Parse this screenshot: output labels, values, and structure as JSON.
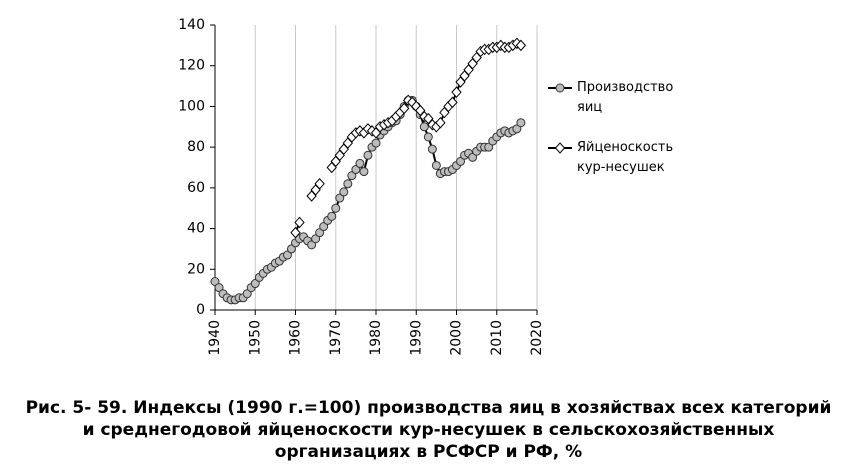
{
  "chart_data": {
    "type": "line",
    "title": [
      "Рис. 5- 59. Индексы (1990 г.=100) производства яиц в хозяйствах всех категорий",
      "и среднегодовой яйценоскости кур-несушек в сельскохозяйственных",
      "организациях в РСФСР и РФ, %"
    ],
    "x": [
      1940,
      1941,
      1942,
      1943,
      1944,
      1945,
      1946,
      1947,
      1948,
      1949,
      1950,
      1951,
      1952,
      1953,
      1954,
      1955,
      1956,
      1957,
      1958,
      1959,
      1960,
      1961,
      1962,
      1963,
      1964,
      1965,
      1966,
      1967,
      1968,
      1969,
      1970,
      1971,
      1972,
      1973,
      1974,
      1975,
      1976,
      1977,
      1978,
      1979,
      1980,
      1981,
      1982,
      1983,
      1984,
      1985,
      1986,
      1987,
      1988,
      1989,
      1990,
      1991,
      1992,
      1993,
      1994,
      1995,
      1996,
      1997,
      1998,
      1999,
      2000,
      2001,
      2002,
      2003,
      2004,
      2005,
      2006,
      2007,
      2008,
      2009,
      2010,
      2011,
      2012,
      2013,
      2014,
      2015,
      2016
    ],
    "series": [
      {
        "name": "Производство яиц",
        "color": "#000000",
        "marker": "circle",
        "values": [
          14,
          11,
          8,
          6,
          5,
          5,
          6,
          6,
          8,
          11,
          13,
          16,
          18,
          20,
          21,
          23,
          24,
          26,
          27,
          30,
          33,
          35,
          36,
          34,
          32,
          35,
          38,
          41,
          44,
          46,
          50,
          55,
          58,
          62,
          66,
          69,
          72,
          68,
          76,
          80,
          82,
          86,
          88,
          90,
          92,
          93,
          96,
          100,
          103,
          103,
          100,
          96,
          90,
          85,
          79,
          71,
          67,
          68,
          68,
          69,
          71,
          73,
          76,
          77,
          75,
          78,
          80,
          80,
          80,
          83,
          85,
          87,
          88,
          87,
          88,
          89,
          92
        ]
      },
      {
        "name": "Яйценоскость кур-несушек",
        "color": "#000000",
        "marker": "diamond",
        "values": [
          null,
          null,
          null,
          null,
          null,
          null,
          null,
          null,
          null,
          null,
          null,
          null,
          null,
          null,
          null,
          null,
          null,
          null,
          null,
          null,
          38,
          43,
          null,
          null,
          56,
          59,
          62,
          null,
          null,
          70,
          73,
          76,
          79,
          82,
          85,
          87,
          88,
          87,
          89,
          88,
          87,
          90,
          91,
          92,
          93,
          95,
          97,
          99,
          103,
          102,
          100,
          98,
          95,
          94,
          91,
          90,
          92,
          97,
          100,
          102,
          107,
          112,
          115,
          118,
          121,
          124,
          127,
          128,
          128,
          129,
          129,
          130,
          129,
          129,
          130,
          131,
          130
        ]
      }
    ],
    "xlim": [
      1940,
      2020
    ],
    "xticks": [
      1940,
      1950,
      1960,
      1970,
      1980,
      1990,
      2000,
      2010,
      2020
    ],
    "ylim": [
      0,
      140
    ],
    "yticks": [
      0,
      20,
      40,
      60,
      80,
      100,
      120,
      140
    ],
    "grid": "x",
    "legend": "right"
  }
}
